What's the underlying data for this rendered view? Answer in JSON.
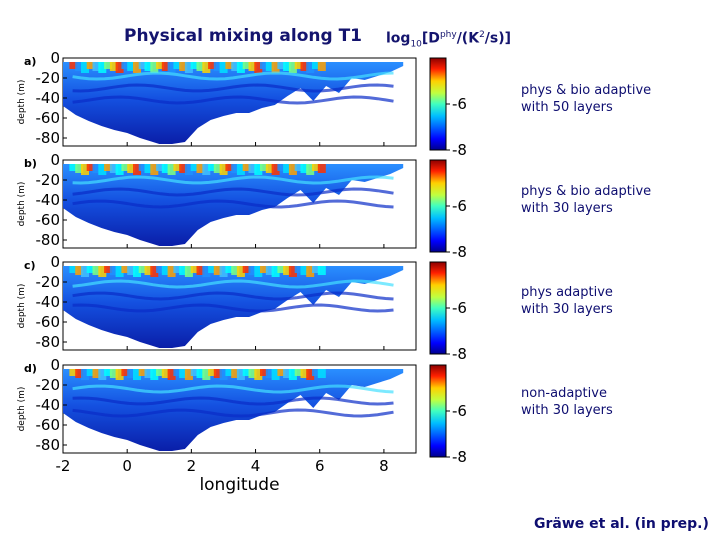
{
  "header": {
    "title": "Physical mixing along T1",
    "units_prefix": "log",
    "units_sub": "10",
    "units_body": "[D",
    "units_sup": "phy",
    "units_tail": "/(K",
    "units_sup2": "2",
    "units_end": "/s)]"
  },
  "panels": [
    {
      "letter": "a)",
      "line1": "phys & bio adaptive",
      "line2": "with 50 layers"
    },
    {
      "letter": "b)",
      "line1": "phys & bio adaptive",
      "line2": "with 30 layers"
    },
    {
      "letter": "c)",
      "line1": "phys adaptive",
      "line2": "with 30 layers"
    },
    {
      "letter": "d)",
      "line1": "non-adaptive",
      "line2": "with 30 layers"
    }
  ],
  "credit": "Gräwe et al. (in prep.)",
  "chart_data": {
    "type": "heatmap",
    "title": "Physical mixing along T1",
    "xlabel": "longitude",
    "ylabel": "depth (m)",
    "xlim": [
      -2,
      9
    ],
    "ylim": [
      -88,
      0
    ],
    "x_ticks": [
      "-2",
      "0",
      "2",
      "4",
      "6",
      "8"
    ],
    "y_ticks": [
      "0",
      "-20",
      "-40",
      "-60",
      "-80"
    ],
    "colorbar": {
      "label": "log10[Dphy/(K2/s)]",
      "range": [
        -8,
        -4
      ],
      "ticks": [
        "-6",
        "-8"
      ]
    },
    "bottom_profile": {
      "x": [
        -2.0,
        -1.6,
        -1.2,
        -0.8,
        -0.4,
        0.0,
        0.4,
        0.8,
        1.0,
        1.4,
        1.8,
        2.2,
        2.6,
        3.0,
        3.4,
        3.8,
        4.2,
        4.6,
        5.0,
        5.4,
        5.8,
        6.2,
        6.6,
        7.0,
        7.4,
        7.8,
        8.2,
        8.6
      ],
      "depth": [
        -48,
        -57,
        -63,
        -68,
        -72,
        -75,
        -80,
        -84,
        -86,
        -86,
        -84,
        -70,
        -62,
        -58,
        -55,
        -55,
        -50,
        -47,
        -38,
        -30,
        -43,
        -28,
        -35,
        -20,
        -22,
        -18,
        -14,
        -8
      ]
    }
  }
}
